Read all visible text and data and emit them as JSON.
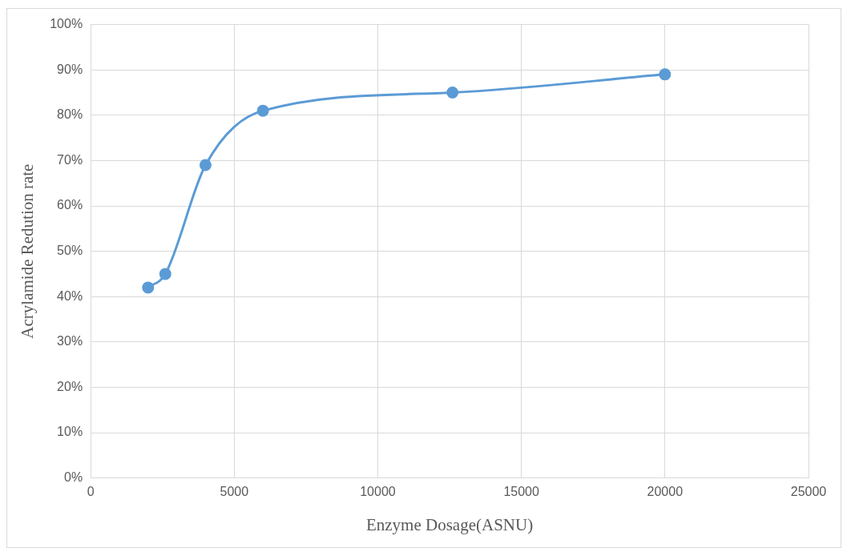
{
  "chart_data": {
    "type": "line",
    "xlabel": "Enzyme Dosage(ASNU)",
    "ylabel": "Acrylamide Redution rate",
    "x": [
      2000,
      2600,
      4000,
      6000,
      12600,
      20000
    ],
    "series": [
      {
        "color": "#5b9bd5",
        "values": [
          42,
          45,
          69,
          81,
          85,
          89
        ]
      }
    ],
    "xlim": [
      0,
      25000
    ],
    "xticks": [
      0,
      5000,
      10000,
      15000,
      20000,
      25000
    ],
    "ylim": [
      0,
      100
    ],
    "yticks": [
      {
        "value": 0,
        "label": "0%"
      },
      {
        "value": 10,
        "label": "10%"
      },
      {
        "value": 20,
        "label": "20%"
      },
      {
        "value": 30,
        "label": "30%"
      },
      {
        "value": 40,
        "label": "40%"
      },
      {
        "value": 50,
        "label": "50%"
      },
      {
        "value": 60,
        "label": "60%"
      },
      {
        "value": 70,
        "label": "70%"
      },
      {
        "value": 80,
        "label": "80%"
      },
      {
        "value": 90,
        "label": "90%"
      },
      {
        "value": 100,
        "label": "100%"
      }
    ],
    "grid": true,
    "legend": false,
    "marker": "circle",
    "line_style": "solid"
  }
}
